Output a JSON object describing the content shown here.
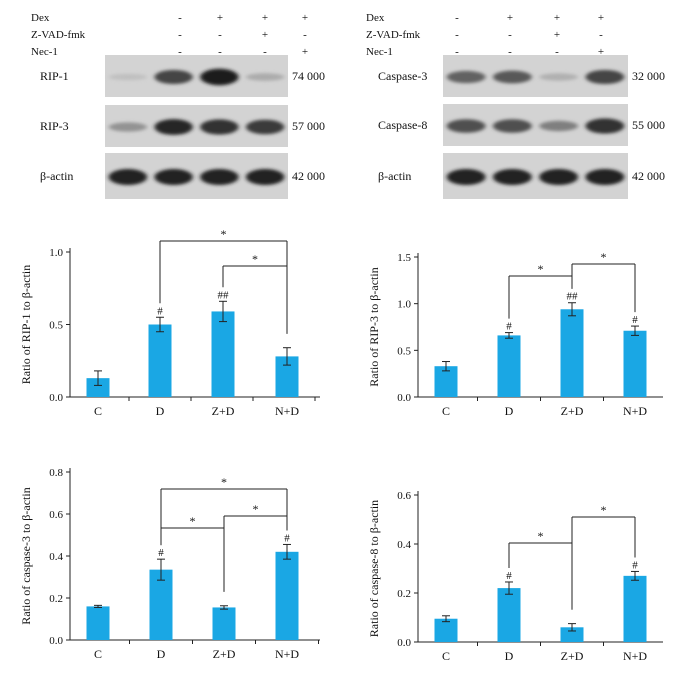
{
  "blots": [
    {
      "treat_labels": [
        "Dex",
        "Z-VAD-fmk",
        "Nec-1"
      ],
      "signs": [
        [
          "-",
          "+",
          "+",
          "+"
        ],
        [
          "-",
          "-",
          "+",
          "-"
        ],
        [
          "-",
          "-",
          "-",
          "+"
        ]
      ],
      "rows": [
        {
          "label": "RIP-1",
          "mw": "74 000",
          "bands": [
            0.12,
            0.75,
            0.95,
            0.22
          ]
        },
        {
          "label": "RIP-3",
          "mw": "57 000",
          "bands": [
            0.35,
            0.9,
            0.85,
            0.8
          ]
        },
        {
          "label": "β-actin",
          "mw": "42 000",
          "bands": [
            0.92,
            0.92,
            0.92,
            0.92
          ]
        }
      ]
    },
    {
      "treat_labels": [
        "Dex",
        "Z-VAD-fmk",
        "Nec-1"
      ],
      "signs": [
        [
          "-",
          "+",
          "+",
          "+"
        ],
        [
          "-",
          "-",
          "+",
          "-"
        ],
        [
          "-",
          "-",
          "-",
          "+"
        ]
      ],
      "rows": [
        {
          "label": "Caspase-3",
          "mw": "32 000",
          "bands": [
            0.6,
            0.65,
            0.2,
            0.75
          ]
        },
        {
          "label": "Caspase-8",
          "mw": "55 000",
          "bands": [
            0.7,
            0.7,
            0.45,
            0.85
          ]
        },
        {
          "label": "β-actin",
          "mw": "42 000",
          "bands": [
            0.92,
            0.92,
            0.92,
            0.92
          ]
        }
      ]
    }
  ],
  "chart_data": [
    {
      "type": "bar",
      "ylabel": "Ratio of RIP-1 to β-actin",
      "categories": [
        "C",
        "D",
        "Z+D",
        "N+D"
      ],
      "values": [
        0.13,
        0.5,
        0.59,
        0.28
      ],
      "errors": [
        0.05,
        0.05,
        0.07,
        0.06
      ],
      "marks": [
        "",
        "#",
        "##",
        ""
      ],
      "ylim": [
        0,
        1.0
      ],
      "yticks": [
        0.0,
        0.5,
        1.0
      ],
      "ytick_labels": [
        "0.0",
        "0.5",
        "1.0"
      ],
      "color": "#1aa7e4",
      "sig": [
        {
          "from": 1,
          "to": 3,
          "label": "*"
        },
        {
          "from": 2,
          "to": 3,
          "label": "*"
        }
      ]
    },
    {
      "type": "bar",
      "ylabel": "Ratio of RIP-3 to β-actin",
      "categories": [
        "C",
        "D",
        "Z+D",
        "N+D"
      ],
      "values": [
        0.33,
        0.66,
        0.94,
        0.71
      ],
      "errors": [
        0.05,
        0.03,
        0.07,
        0.05
      ],
      "marks": [
        "",
        "#",
        "##",
        "#"
      ],
      "ylim": [
        0,
        1.5
      ],
      "yticks": [
        0.0,
        0.5,
        1.0,
        1.5
      ],
      "ytick_labels": [
        "0.0",
        "0.5",
        "1.0",
        "1.5"
      ],
      "color": "#1aa7e4",
      "sig": [
        {
          "from": 1,
          "to": 2,
          "label": "*"
        },
        {
          "from": 2,
          "to": 3,
          "label": "*"
        }
      ]
    },
    {
      "type": "bar",
      "ylabel": "Ratio of caspase-3 to β-actin",
      "categories": [
        "C",
        "D",
        "Z+D",
        "N+D"
      ],
      "values": [
        0.16,
        0.335,
        0.155,
        0.42
      ],
      "errors": [
        0.005,
        0.05,
        0.008,
        0.035
      ],
      "marks": [
        "",
        "#",
        "",
        "#"
      ],
      "ylim": [
        0,
        0.8
      ],
      "yticks": [
        0.0,
        0.2,
        0.4,
        0.6,
        0.8
      ],
      "ytick_labels": [
        "0.0",
        "0.2",
        "0.4",
        "0.6",
        "0.8"
      ],
      "color": "#1aa7e4",
      "sig": [
        {
          "from": 1,
          "to": 3,
          "label": "*"
        },
        {
          "from": 2,
          "to": 3,
          "label": "*"
        },
        {
          "from": 1,
          "to": 2,
          "label": "*"
        }
      ]
    },
    {
      "type": "bar",
      "ylabel": "Ratio of caspase-8 to β-actin",
      "categories": [
        "C",
        "D",
        "Z+D",
        "N+D"
      ],
      "values": [
        0.095,
        0.22,
        0.06,
        0.27
      ],
      "errors": [
        0.012,
        0.025,
        0.015,
        0.018
      ],
      "marks": [
        "",
        "#",
        "",
        "#"
      ],
      "ylim": [
        0,
        0.6
      ],
      "yticks": [
        0.0,
        0.2,
        0.4,
        0.6
      ],
      "ytick_labels": [
        "0.0",
        "0.2",
        "0.4",
        "0.6"
      ],
      "color": "#1aa7e4",
      "sig": [
        {
          "from": 1,
          "to": 2,
          "label": "*"
        },
        {
          "from": 2,
          "to": 3,
          "label": "*"
        }
      ]
    }
  ]
}
